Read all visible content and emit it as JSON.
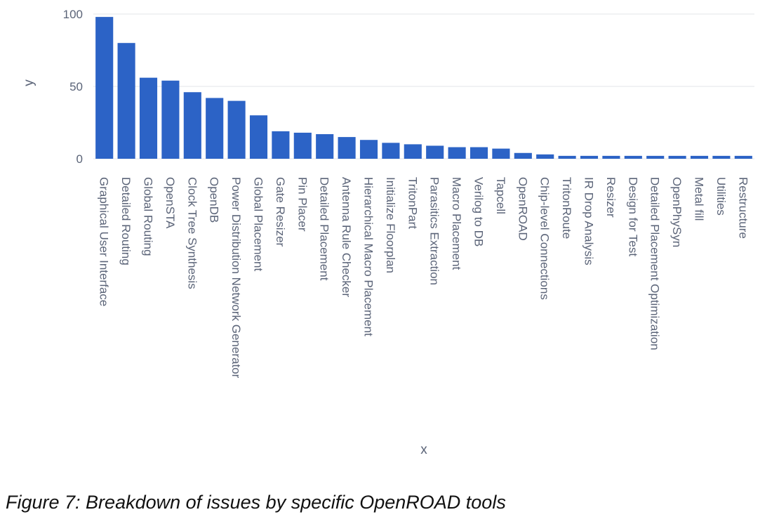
{
  "caption": "Figure 7: Breakdown of issues by specific OpenROAD tools",
  "colors": {
    "bar": "#2c63c6",
    "grid": "#e3e6ea",
    "text": "#5b6478"
  },
  "chart_data": {
    "type": "bar",
    "title": "",
    "xlabel": "x",
    "ylabel": "y",
    "ylim": [
      0,
      100
    ],
    "yticks": [
      0,
      50,
      100
    ],
    "grid": true,
    "categories": [
      "Graphical User Interface",
      "Detailed Routing",
      "Global Routing",
      "OpenSTA",
      "Clock Tree Synthesis",
      "OpenDB",
      "Power Distribution Network Generator",
      "Global Placement",
      "Gate Resizer",
      "Pin Placer",
      "Detailed Placement",
      "Antenna Rule Checker",
      "Hierarchical Macro Placement",
      "Initialize Floorplan",
      "TritonPart",
      "Parasitics Extraction",
      "Macro Placement",
      "Verilog to DB",
      "Tapcell",
      "OpenROAD",
      "Chip-level Connections",
      "TritonRoute",
      "IR Drop Analysis",
      "Resizer",
      "Design for Test",
      "Detailed Placement Optimization",
      "OpenPhySyn",
      "Metal fill",
      "Utilities",
      "Restructure"
    ],
    "values": [
      98,
      80,
      56,
      54,
      46,
      42,
      40,
      30,
      19,
      18,
      17,
      15,
      13,
      11,
      10,
      9,
      8,
      8,
      7,
      4,
      3,
      2,
      2,
      2,
      2,
      2,
      2,
      2,
      2,
      2
    ]
  }
}
